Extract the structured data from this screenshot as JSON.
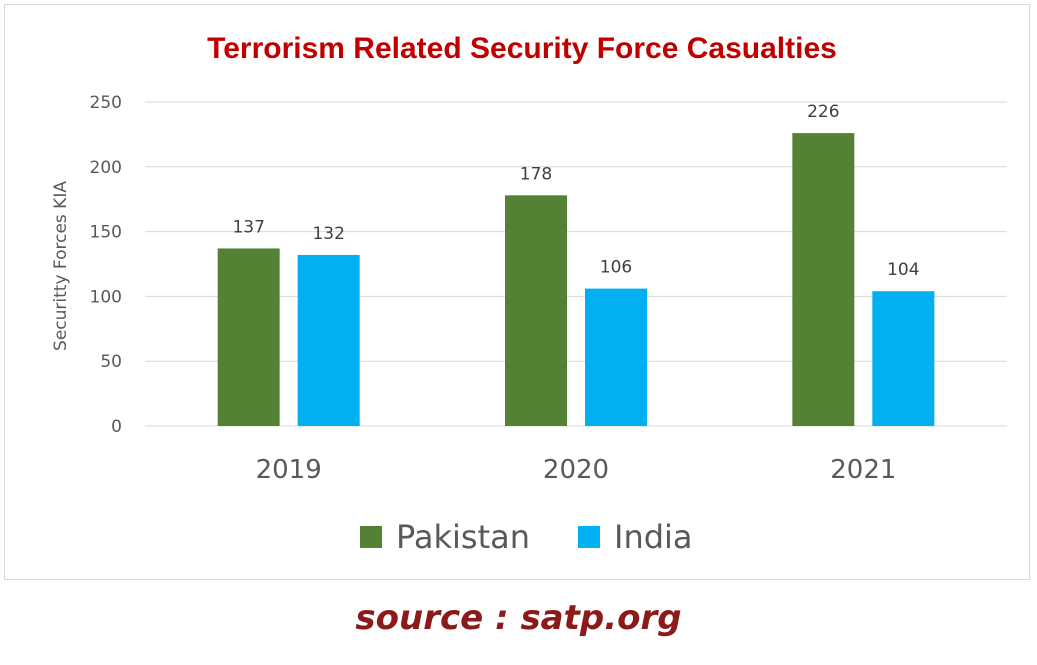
{
  "chart_data": {
    "type": "bar",
    "title": "Terrorism Related Security Force Casualties",
    "ylabel": "Securitty Forces KIA",
    "xlabel": "",
    "categories": [
      "2019",
      "2020",
      "2021"
    ],
    "series": [
      {
        "name": "Pakistan",
        "values": [
          137,
          178,
          226
        ],
        "color": "#548235"
      },
      {
        "name": "India",
        "values": [
          132,
          106,
          104
        ],
        "color": "#00b0f0"
      }
    ],
    "ylim": [
      0,
      250
    ],
    "yticks": [
      "0",
      "50",
      "100",
      "150",
      "200",
      "250"
    ],
    "grid": true,
    "legend_position": "bottom",
    "title_color": "#c00000"
  },
  "source_text": "source : satp.org"
}
